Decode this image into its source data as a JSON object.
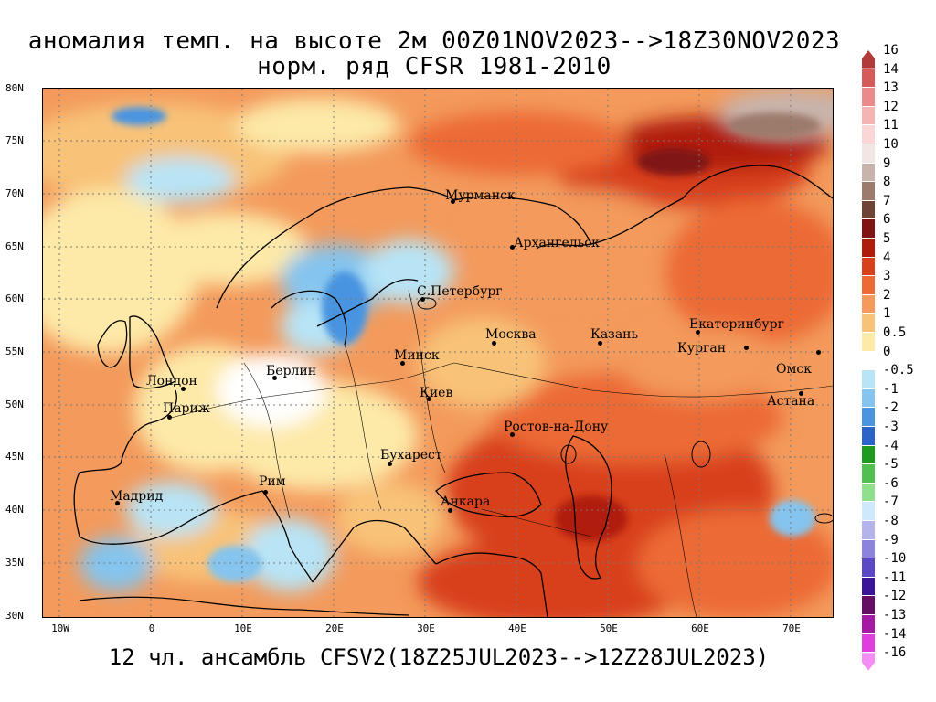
{
  "title": {
    "line1": "аномалия темп. на высоте 2м 00Z01NOV2023-->18Z30NOV2023",
    "line2": "норм. ряд CFSR 1981-2010"
  },
  "footer": "12 чл. ансамбль CFSV2(18Z25JUL2023-->12Z28JUL2023)",
  "map": {
    "lon_range": [
      -12,
      75
    ],
    "lat_range": [
      30,
      80
    ],
    "lat_labels": [
      "80N",
      "75N",
      "70N",
      "65N",
      "60N",
      "55N",
      "50N",
      "45N",
      "40N",
      "35N",
      "30N"
    ],
    "lon_labels": [
      "10W",
      "0",
      "10E",
      "20E",
      "30E",
      "40E",
      "50E",
      "60E",
      "70E"
    ],
    "cities": [
      {
        "name": "Мурманск",
        "lon": 33.1,
        "lat": 68.97
      },
      {
        "name": "Архангельск",
        "lon": 40.5,
        "lat": 64.5
      },
      {
        "name": "С.Петербург",
        "lon": 30.3,
        "lat": 59.9
      },
      {
        "name": "Москва",
        "lon": 37.6,
        "lat": 55.75
      },
      {
        "name": "Казань",
        "lon": 49.1,
        "lat": 55.8
      },
      {
        "name": "Екатеринбург",
        "lon": 60.6,
        "lat": 56.8
      },
      {
        "name": "Курган",
        "lon": 65.3,
        "lat": 55.4
      },
      {
        "name": "Омск",
        "lon": 73.4,
        "lat": 55.0
      },
      {
        "name": "Астана",
        "lon": 71.4,
        "lat": 51.1
      },
      {
        "name": "Минск",
        "lon": 27.6,
        "lat": 53.9
      },
      {
        "name": "Лондон",
        "lon": -0.1,
        "lat": 51.5
      },
      {
        "name": "Париж",
        "lon": 2.35,
        "lat": 48.85
      },
      {
        "name": "Берлин",
        "lon": 13.4,
        "lat": 52.5
      },
      {
        "name": "Киев",
        "lon": 30.5,
        "lat": 50.45
      },
      {
        "name": "Ростов-на-Дону",
        "lon": 39.7,
        "lat": 47.2
      },
      {
        "name": "Бухарест",
        "lon": 26.1,
        "lat": 44.4
      },
      {
        "name": "Рим",
        "lon": 12.5,
        "lat": 41.9
      },
      {
        "name": "Мадрид",
        "lon": -3.7,
        "lat": 40.4
      },
      {
        "name": "Анкара",
        "lon": 32.85,
        "lat": 39.93
      }
    ]
  },
  "colorbar": {
    "levels": [
      "16",
      "14",
      "13",
      "12",
      "11",
      "10",
      "9",
      "8",
      "7",
      "6",
      "5",
      "4",
      "3",
      "2",
      "1",
      "0.5",
      "0",
      "-0.5",
      "-1",
      "-2",
      "-3",
      "-4",
      "-5",
      "-6",
      "-7",
      "-8",
      "-9",
      "-10",
      "-11",
      "-12",
      "-13",
      "-14",
      "-16"
    ],
    "colors": [
      "#b23a3a",
      "#d55a5a",
      "#ea8a8a",
      "#f5b4b4",
      "#fad6d6",
      "#f2e6e4",
      "#c8b4ac",
      "#9c7a6c",
      "#6e4436",
      "#801414",
      "#b01c0c",
      "#d8401a",
      "#ec6a34",
      "#f59a5a",
      "#f8c278",
      "#fde9a8",
      "#ffffff",
      "#b8e4f6",
      "#84c4ee",
      "#4a94e0",
      "#2a64c8",
      "#1e9a1e",
      "#52c050",
      "#90df8c",
      "#cde9fb",
      "#b4b4ea",
      "#8c84dc",
      "#5a48c4",
      "#3c1498",
      "#660e66",
      "#a41aa4",
      "#de3ede",
      "#f48ef4"
    ]
  }
}
